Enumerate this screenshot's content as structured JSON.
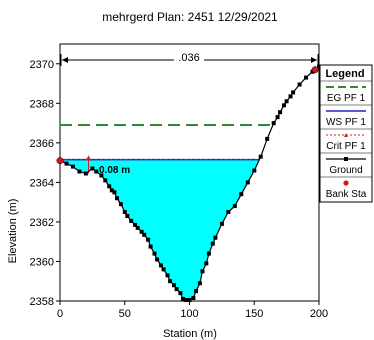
{
  "chart_data": {
    "type": "line",
    "title": "mehrgerd        Plan: 2451     12/29/2021",
    "xlabel": "Station (m)",
    "ylabel": "Elevation (m)",
    "xlim": [
      0,
      200
    ],
    "ylim": [
      2358,
      2371
    ],
    "x_ticks": [
      "0",
      "50",
      "100",
      "150",
      "200"
    ],
    "y_ticks": [
      "2358",
      "2360",
      "2362",
      "2364",
      "2366",
      "2368",
      "2370"
    ],
    "grid": false,
    "legend_position": "right",
    "legend_title": "Legend",
    "annotations": {
      "manning_n": ".036",
      "depth_label": "0.08 m"
    },
    "levels": {
      "eg_pf1": 2366.9,
      "ws_pf1": 2365.15,
      "crit_pf1": 2365.15
    },
    "ground": {
      "x": [
        0,
        5,
        10,
        15,
        20,
        25,
        28,
        32,
        35,
        38,
        40,
        42,
        44,
        47,
        50,
        52,
        55,
        58,
        60,
        63,
        65,
        68,
        70,
        73,
        75,
        78,
        80,
        83,
        85,
        88,
        90,
        93,
        95,
        97,
        100,
        103,
        105,
        108,
        110,
        113,
        115,
        118,
        120,
        125,
        130,
        135,
        140,
        145,
        150,
        155,
        160,
        165,
        168,
        170,
        173,
        175,
        178,
        180,
        185,
        190,
        195,
        200
      ],
      "y": [
        2365.1,
        2364.95,
        2364.8,
        2364.55,
        2364.45,
        2364.7,
        2364.55,
        2364.35,
        2364.1,
        2363.8,
        2363.6,
        2363.5,
        2363.2,
        2362.9,
        2362.5,
        2362.3,
        2362.05,
        2361.85,
        2361.7,
        2361.5,
        2361.35,
        2361.1,
        2360.75,
        2360.4,
        2360.1,
        2359.8,
        2359.6,
        2359.3,
        2359.0,
        2358.8,
        2358.6,
        2358.4,
        2358.1,
        2358.05,
        2358.05,
        2358.15,
        2358.5,
        2358.9,
        2359.5,
        2359.9,
        2360.4,
        2360.9,
        2361.2,
        2361.9,
        2362.5,
        2362.8,
        2363.4,
        2364.0,
        2364.6,
        2365.3,
        2366.2,
        2367.0,
        2367.3,
        2367.55,
        2367.9,
        2368.1,
        2368.35,
        2368.55,
        2368.95,
        2369.3,
        2369.6,
        2369.85
      ]
    },
    "bank_stations": [
      {
        "x": 0,
        "y": 2365.1
      },
      {
        "x": 197,
        "y": 2369.7
      }
    ],
    "legend": [
      {
        "key": "eg",
        "label": "EG PF 1",
        "color": "#2e8b2e"
      },
      {
        "key": "ws",
        "label": "WS PF 1",
        "color": "#2222cc"
      },
      {
        "key": "crit",
        "label": "Crit PF 1",
        "color": "#cc2222"
      },
      {
        "key": "ground",
        "label": "Ground",
        "color": "#000000"
      },
      {
        "key": "bank",
        "label": "Bank Sta",
        "color": "#dd1111"
      }
    ],
    "colors": {
      "water": "#00ffff",
      "ground": "#000000",
      "eg": "#2e8b2e",
      "ws": "#2222cc",
      "crit": "#cc2222",
      "bank": "#dd1111"
    }
  }
}
